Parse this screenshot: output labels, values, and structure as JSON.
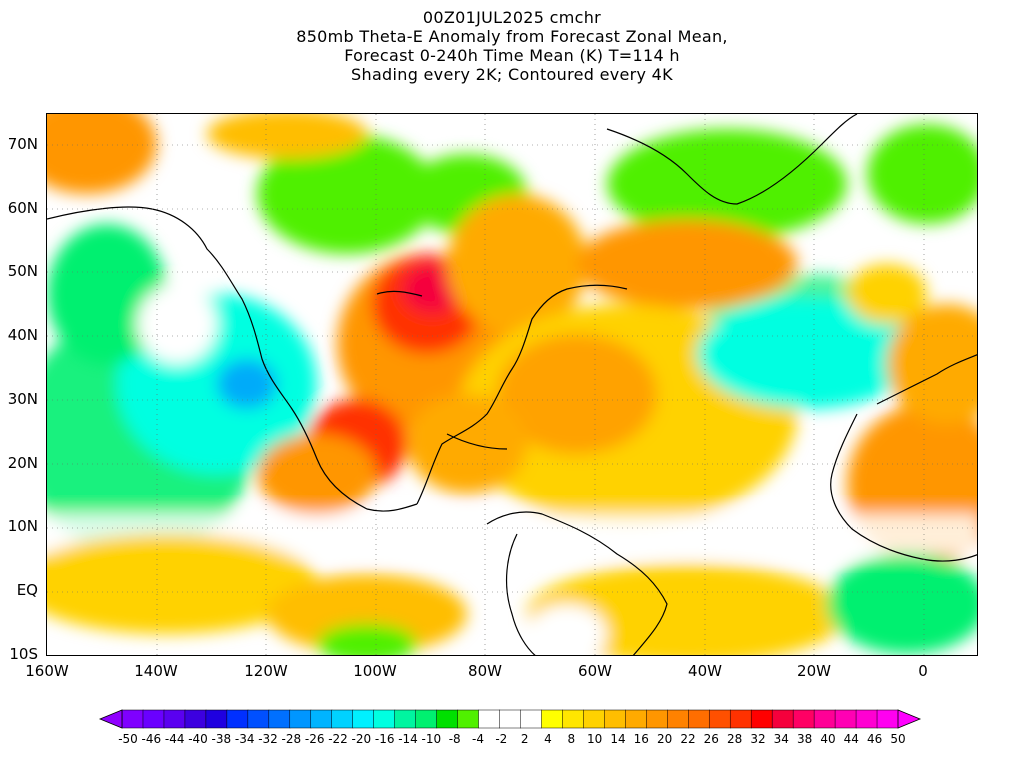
{
  "title": {
    "line1": "00Z01JUL2025 cmchr",
    "line2": "850mb Theta-E Anomaly from Forecast Zonal Mean,",
    "line3": "Forecast 0-240h Time Mean (K) T=114 h",
    "line4": "Shading every 2K; Contoured every 4K"
  },
  "map": {
    "lat_labels": [
      "70N",
      "60N",
      "50N",
      "40N",
      "30N",
      "20N",
      "10N",
      "EQ",
      "10S"
    ],
    "lon_labels": [
      "160W",
      "140W",
      "120W",
      "100W",
      "80W",
      "60W",
      "40W",
      "20W",
      "0"
    ],
    "lon_range": [
      -160,
      10
    ],
    "lat_range": [
      -10,
      75
    ]
  },
  "colorbar": {
    "labels": [
      "-50",
      "-46",
      "-44",
      "-40",
      "-38",
      "-34",
      "-32",
      "-28",
      "-26",
      "-22",
      "-20",
      "-16",
      "-14",
      "-10",
      "-8",
      "-4",
      "-2",
      "2",
      "4",
      "8",
      "10",
      "14",
      "16",
      "20",
      "22",
      "26",
      "28",
      "32",
      "34",
      "38",
      "40",
      "44",
      "46",
      "50"
    ],
    "colors": [
      "#7f00ff",
      "#6a00ff",
      "#5a00f0",
      "#3c00e0",
      "#1f00e0",
      "#0030ff",
      "#0050ff",
      "#0070ff",
      "#0096ff",
      "#00b4ff",
      "#00d2ff",
      "#00f0ff",
      "#00ffe1",
      "#00f5a0",
      "#00f070",
      "#00e000",
      "#50f000",
      "#ffffff",
      "#ffffff",
      "#ffffff",
      "#ffff00",
      "#ffe600",
      "#ffd200",
      "#ffbe00",
      "#ffaa00",
      "#ff9600",
      "#ff8200",
      "#ff6e00",
      "#ff5000",
      "#ff3200",
      "#ff0000",
      "#f5003c",
      "#ff0064",
      "#ff0096",
      "#ff00b4",
      "#ff00d2",
      "#ff00f0"
    ],
    "arrow_left_color": "#9000ff",
    "arrow_right_color": "#ff00ff"
  },
  "colors": {
    "ocean_cyan": "#00ffe1",
    "ocean_green": "#00f070",
    "land_green": "#50f000",
    "yellow": "#ffff00",
    "orange": "#ff9600",
    "red": "#ff0000",
    "magenta": "#ff0064",
    "blue": "#0096ff"
  }
}
